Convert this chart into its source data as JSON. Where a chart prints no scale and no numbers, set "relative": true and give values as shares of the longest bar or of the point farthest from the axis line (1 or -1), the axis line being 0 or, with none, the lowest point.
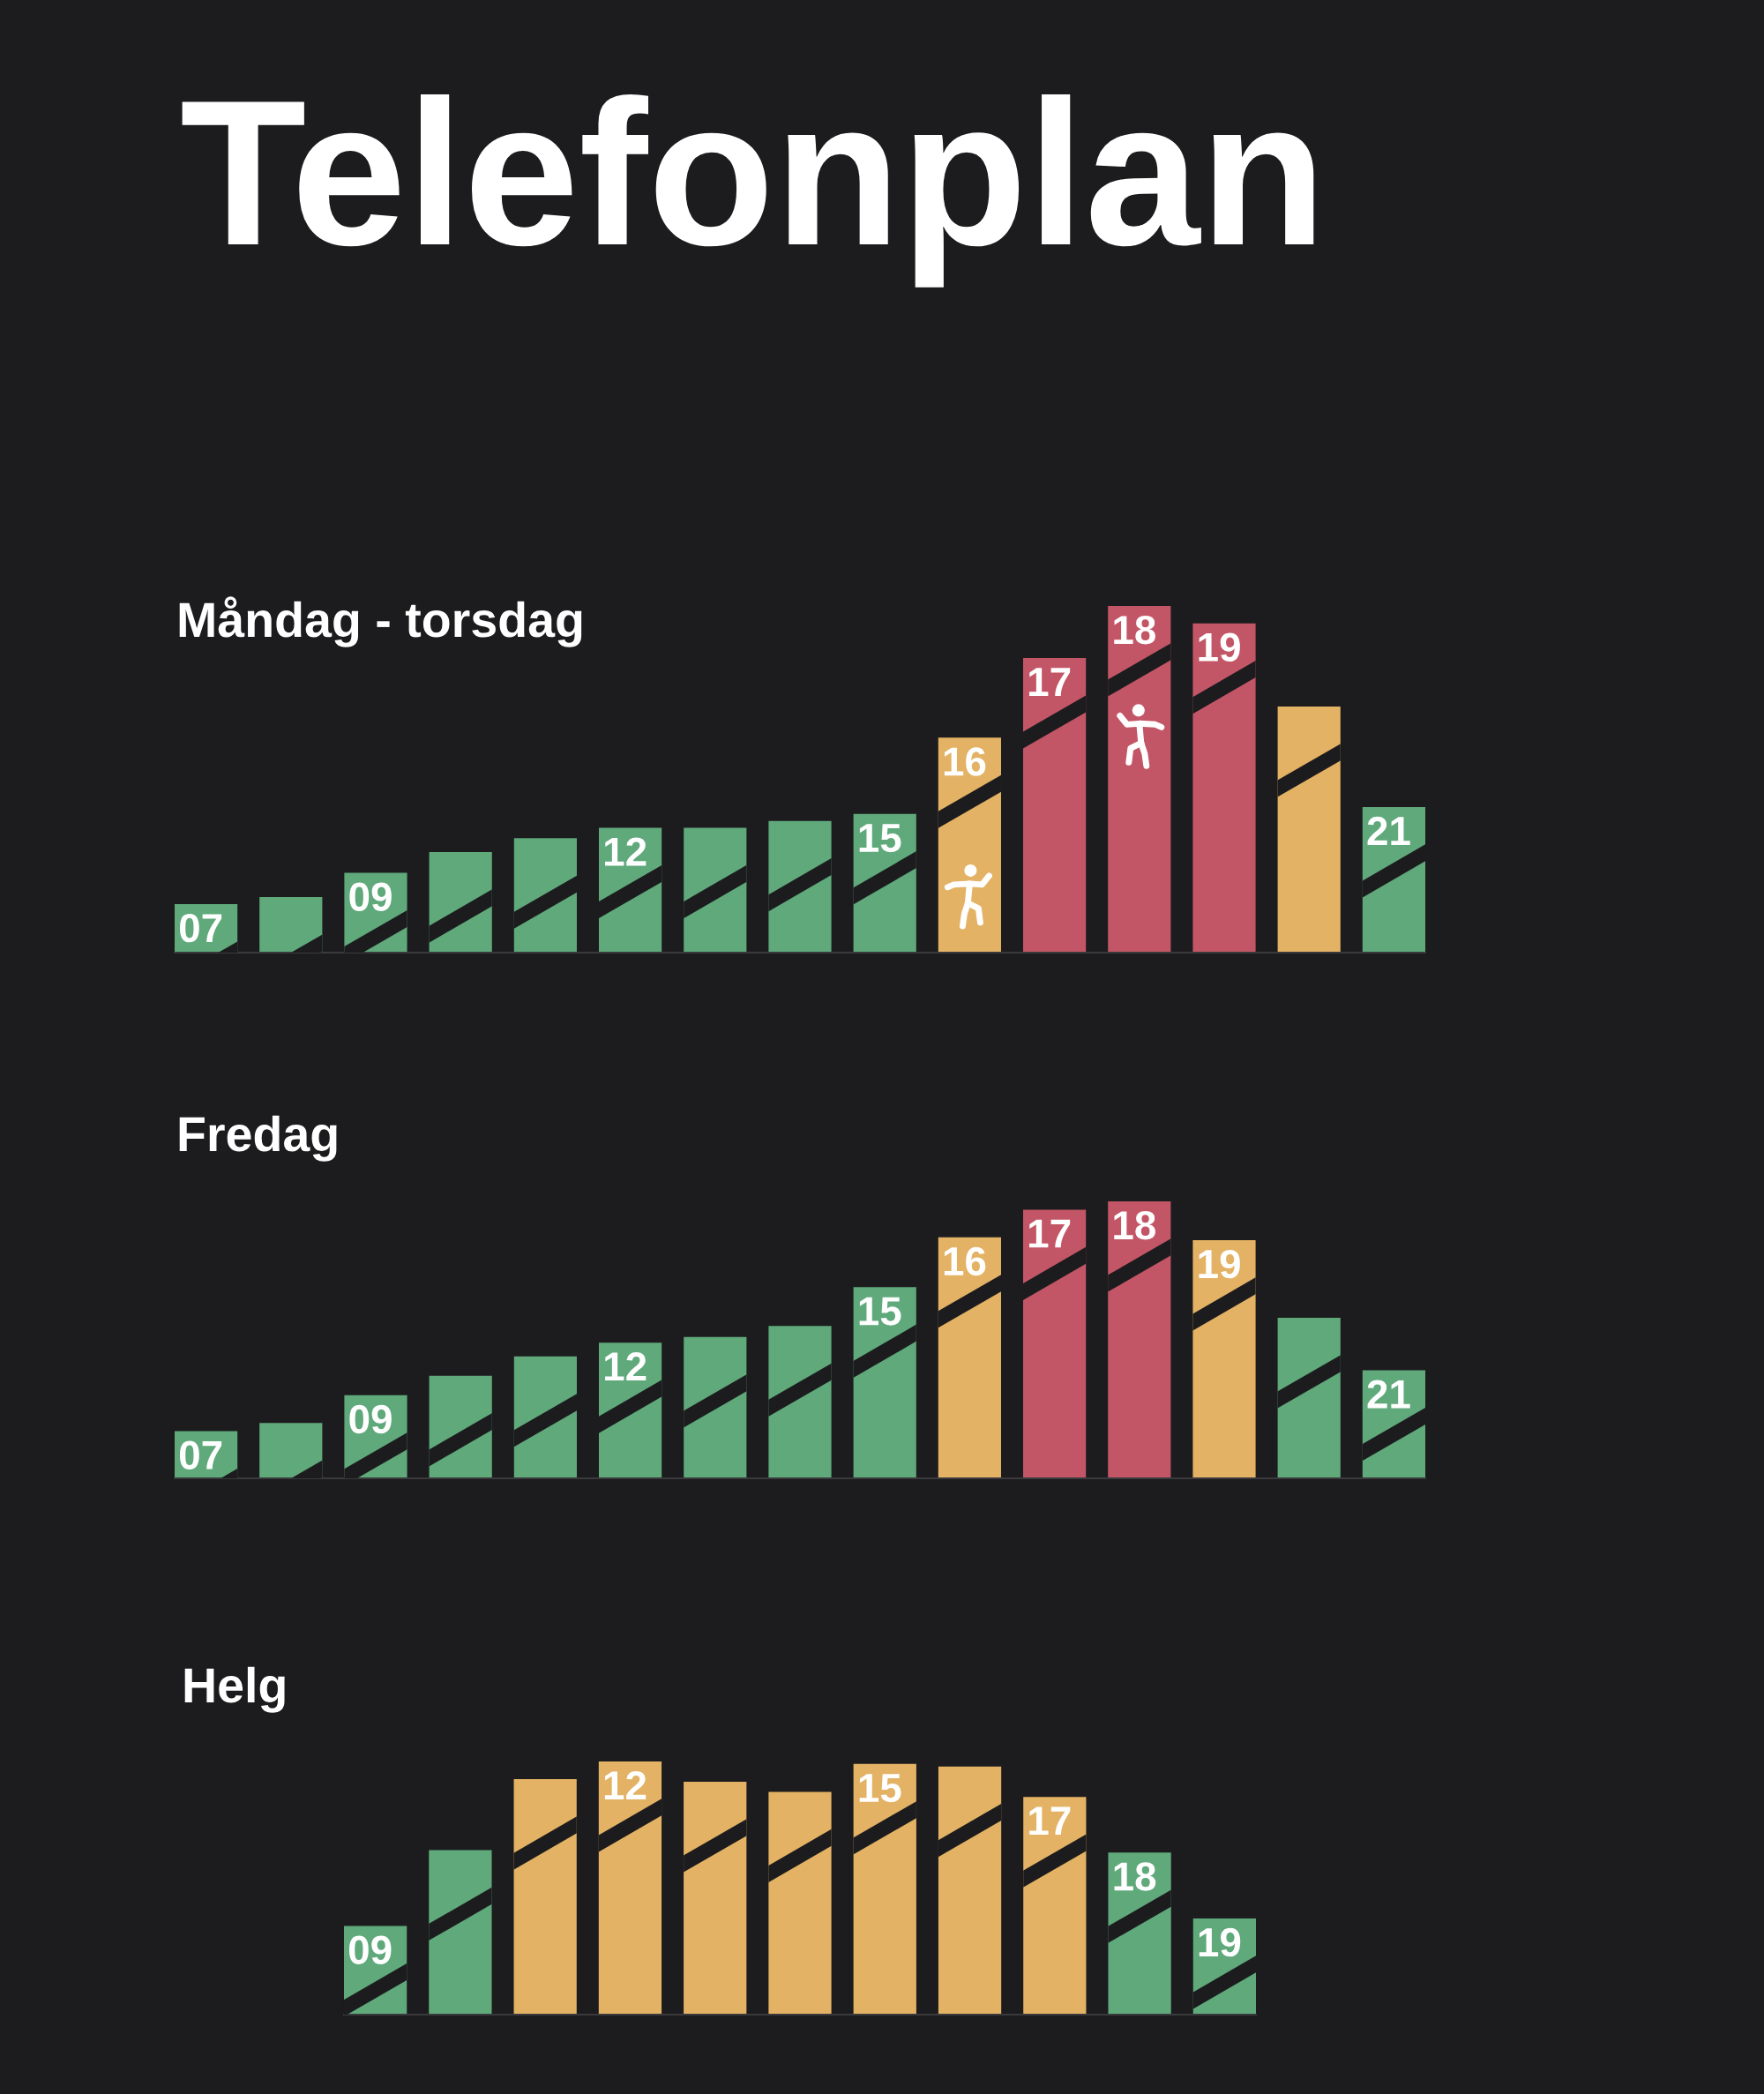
{
  "chart_data": [
    {
      "type": "bar",
      "title": "Telefonplan",
      "subtitle": "Måndag - torsdag",
      "relative": true,
      "tick_labels": false,
      "categories": [
        "07",
        null,
        "09",
        null,
        null,
        "12",
        null,
        null,
        "15",
        "16",
        "17",
        "18",
        "19",
        null,
        "21"
      ],
      "values": [
        0.14,
        0.16,
        0.23,
        0.29,
        0.33,
        0.36,
        0.36,
        0.38,
        0.4,
        0.62,
        0.85,
        1,
        0.95,
        0.71,
        0.42
      ],
      "colors": [
        "#5fa97b",
        "#5fa97b",
        "#5fa97b",
        "#5fa97b",
        "#5fa97b",
        "#5fa97b",
        "#5fa97b",
        "#5fa97b",
        "#5fa97b",
        "#e3b264",
        "#c35666",
        "#c35666",
        "#c35666",
        "#e3b264",
        "#5fa97b"
      ]
    },
    {
      "type": "bar",
      "subtitle": "Fredag",
      "relative": true,
      "tick_labels": false,
      "categories": [
        "07",
        null,
        "09",
        null,
        null,
        "12",
        null,
        null,
        "15",
        "16",
        "17",
        "18",
        "19",
        null,
        "21"
      ],
      "values": [
        0.17,
        0.2,
        0.3,
        0.37,
        0.44,
        0.49,
        0.51,
        0.55,
        0.69,
        0.87,
        0.97,
        1,
        0.86,
        0.58,
        0.39
      ],
      "colors": [
        "#5fa97b",
        "#5fa97b",
        "#5fa97b",
        "#5fa97b",
        "#5fa97b",
        "#5fa97b",
        "#5fa97b",
        "#5fa97b",
        "#5fa97b",
        "#e3b264",
        "#c35666",
        "#c35666",
        "#e3b264",
        "#5fa97b",
        "#5fa97b"
      ]
    },
    {
      "type": "bar",
      "subtitle": "Helg",
      "relative": true,
      "tick_labels": false,
      "categories": [
        "09",
        null,
        null,
        "12",
        null,
        null,
        "15",
        null,
        "17",
        "18",
        "19"
      ],
      "values": [
        0.35,
        0.65,
        0.93,
        1,
        0.92,
        0.88,
        0.99,
        0.98,
        0.86,
        0.64,
        0.38
      ],
      "colors": [
        "#5fa97b",
        "#5fa97b",
        "#e3b264",
        "#e3b264",
        "#e3b264",
        "#e3b264",
        "#e3b264",
        "#e3b264",
        "#e3b264",
        "#5fa97b",
        "#5fa97b"
      ]
    }
  ]
}
